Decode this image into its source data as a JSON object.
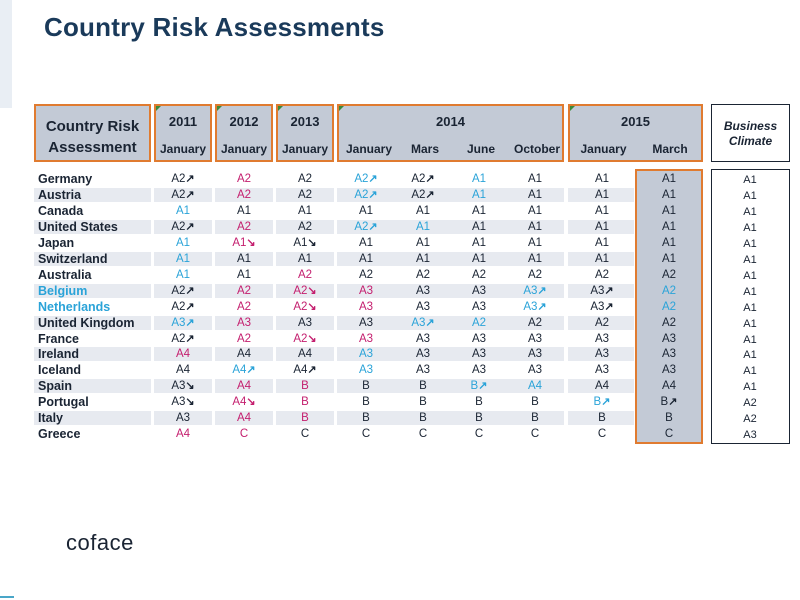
{
  "title": "Country Risk Assessments",
  "header": {
    "cra_label_line1": "Country Risk",
    "cra_label_line2": "Assessment",
    "years": [
      "2011",
      "2012",
      "2013",
      "2014",
      "2015"
    ],
    "months": [
      "January",
      "January",
      "January",
      "January",
      "Mars",
      "June",
      "October",
      "January",
      "March"
    ],
    "business_climate_line1": "Business",
    "business_climate_line2": "Climate"
  },
  "legend_colors": {
    "stable": "#1a2433",
    "upgrade": "#2aa3d8",
    "downgrade": "#c41e6e",
    "highlight_border": "#e07b30"
  },
  "rows": [
    {
      "country": "Germany",
      "cstatus": "n",
      "cells": [
        [
          "A2",
          "n",
          "ne"
        ],
        [
          "A2",
          "d",
          ""
        ],
        [
          "A2",
          "n",
          ""
        ],
        [
          "A2",
          "u",
          "ne"
        ],
        [
          "A2",
          "n",
          "ne"
        ],
        [
          "A1",
          "u",
          ""
        ],
        [
          "A1",
          "n",
          ""
        ],
        [
          "A1",
          "n",
          ""
        ],
        [
          "A1",
          "n",
          ""
        ]
      ],
      "bc": "A1"
    },
    {
      "country": "Austria",
      "cstatus": "n",
      "cells": [
        [
          "A2",
          "n",
          "ne"
        ],
        [
          "A2",
          "d",
          ""
        ],
        [
          "A2",
          "n",
          ""
        ],
        [
          "A2",
          "u",
          "ne"
        ],
        [
          "A2",
          "n",
          "ne"
        ],
        [
          "A1",
          "u",
          ""
        ],
        [
          "A1",
          "n",
          ""
        ],
        [
          "A1",
          "n",
          ""
        ],
        [
          "A1",
          "n",
          ""
        ]
      ],
      "bc": "A1"
    },
    {
      "country": "Canada",
      "cstatus": "n",
      "cells": [
        [
          "A1",
          "u",
          ""
        ],
        [
          "A1",
          "n",
          ""
        ],
        [
          "A1",
          "n",
          ""
        ],
        [
          "A1",
          "n",
          ""
        ],
        [
          "A1",
          "n",
          ""
        ],
        [
          "A1",
          "n",
          ""
        ],
        [
          "A1",
          "n",
          ""
        ],
        [
          "A1",
          "n",
          ""
        ],
        [
          "A1",
          "n",
          ""
        ]
      ],
      "bc": "A1"
    },
    {
      "country": "United States",
      "cstatus": "n",
      "cells": [
        [
          "A2",
          "n",
          "ne"
        ],
        [
          "A2",
          "d",
          ""
        ],
        [
          "A2",
          "n",
          ""
        ],
        [
          "A2",
          "u",
          "ne"
        ],
        [
          "A1",
          "u",
          ""
        ],
        [
          "A1",
          "n",
          ""
        ],
        [
          "A1",
          "n",
          ""
        ],
        [
          "A1",
          "n",
          ""
        ],
        [
          "A1",
          "n",
          ""
        ]
      ],
      "bc": "A1"
    },
    {
      "country": "Japan",
      "cstatus": "n",
      "cells": [
        [
          "A1",
          "u",
          ""
        ],
        [
          "A1",
          "d",
          "se"
        ],
        [
          "A1",
          "n",
          "se"
        ],
        [
          "A1",
          "n",
          ""
        ],
        [
          "A1",
          "n",
          ""
        ],
        [
          "A1",
          "n",
          ""
        ],
        [
          "A1",
          "n",
          ""
        ],
        [
          "A1",
          "n",
          ""
        ],
        [
          "A1",
          "n",
          ""
        ]
      ],
      "bc": "A1"
    },
    {
      "country": "Switzerland",
      "cstatus": "n",
      "cells": [
        [
          "A1",
          "u",
          ""
        ],
        [
          "A1",
          "n",
          ""
        ],
        [
          "A1",
          "n",
          ""
        ],
        [
          "A1",
          "n",
          ""
        ],
        [
          "A1",
          "n",
          ""
        ],
        [
          "A1",
          "n",
          ""
        ],
        [
          "A1",
          "n",
          ""
        ],
        [
          "A1",
          "n",
          ""
        ],
        [
          "A1",
          "n",
          ""
        ]
      ],
      "bc": "A1"
    },
    {
      "country": "Australia",
      "cstatus": "n",
      "cells": [
        [
          "A1",
          "u",
          ""
        ],
        [
          "A1",
          "n",
          ""
        ],
        [
          "A2",
          "d",
          ""
        ],
        [
          "A2",
          "n",
          ""
        ],
        [
          "A2",
          "n",
          ""
        ],
        [
          "A2",
          "n",
          ""
        ],
        [
          "A2",
          "n",
          ""
        ],
        [
          "A2",
          "n",
          ""
        ],
        [
          "A2",
          "n",
          ""
        ]
      ],
      "bc": "A1"
    },
    {
      "country": "Belgium",
      "cstatus": "u",
      "cells": [
        [
          "A2",
          "n",
          "ne"
        ],
        [
          "A2",
          "d",
          ""
        ],
        [
          "A2",
          "d",
          "se"
        ],
        [
          "A3",
          "d",
          ""
        ],
        [
          "A3",
          "n",
          ""
        ],
        [
          "A3",
          "n",
          ""
        ],
        [
          "A3",
          "u",
          "ne"
        ],
        [
          "A3",
          "n",
          "ne"
        ],
        [
          "A2",
          "u",
          ""
        ]
      ],
      "bc": "A1"
    },
    {
      "country": "Netherlands",
      "cstatus": "u",
      "cells": [
        [
          "A2",
          "n",
          "ne"
        ],
        [
          "A2",
          "d",
          ""
        ],
        [
          "A2",
          "d",
          "se"
        ],
        [
          "A3",
          "d",
          ""
        ],
        [
          "A3",
          "n",
          ""
        ],
        [
          "A3",
          "n",
          ""
        ],
        [
          "A3",
          "u",
          "ne"
        ],
        [
          "A3",
          "n",
          "ne"
        ],
        [
          "A2",
          "u",
          ""
        ]
      ],
      "bc": "A1"
    },
    {
      "country": "United Kingdom",
      "cstatus": "n",
      "cells": [
        [
          "A3",
          "u",
          "ne"
        ],
        [
          "A3",
          "d",
          ""
        ],
        [
          "A3",
          "n",
          ""
        ],
        [
          "A3",
          "n",
          ""
        ],
        [
          "A3",
          "u",
          "ne"
        ],
        [
          "A2",
          "u",
          ""
        ],
        [
          "A2",
          "n",
          ""
        ],
        [
          "A2",
          "n",
          ""
        ],
        [
          "A2",
          "n",
          ""
        ]
      ],
      "bc": "A1"
    },
    {
      "country": "France",
      "cstatus": "n",
      "cells": [
        [
          "A2",
          "n",
          "ne"
        ],
        [
          "A2",
          "d",
          ""
        ],
        [
          "A2",
          "d",
          "se"
        ],
        [
          "A3",
          "d",
          ""
        ],
        [
          "A3",
          "n",
          ""
        ],
        [
          "A3",
          "n",
          ""
        ],
        [
          "A3",
          "n",
          ""
        ],
        [
          "A3",
          "n",
          ""
        ],
        [
          "A3",
          "n",
          ""
        ]
      ],
      "bc": "A1"
    },
    {
      "country": "Ireland",
      "cstatus": "n",
      "cells": [
        [
          "A4",
          "d",
          ""
        ],
        [
          "A4",
          "n",
          ""
        ],
        [
          "A4",
          "n",
          ""
        ],
        [
          "A3",
          "u",
          ""
        ],
        [
          "A3",
          "n",
          ""
        ],
        [
          "A3",
          "n",
          ""
        ],
        [
          "A3",
          "n",
          ""
        ],
        [
          "A3",
          "n",
          ""
        ],
        [
          "A3",
          "n",
          ""
        ]
      ],
      "bc": "A1"
    },
    {
      "country": "Iceland",
      "cstatus": "n",
      "cells": [
        [
          "A4",
          "n",
          ""
        ],
        [
          "A4",
          "u",
          "ne"
        ],
        [
          "A4",
          "n",
          "ne"
        ],
        [
          "A3",
          "u",
          ""
        ],
        [
          "A3",
          "n",
          ""
        ],
        [
          "A3",
          "n",
          ""
        ],
        [
          "A3",
          "n",
          ""
        ],
        [
          "A3",
          "n",
          ""
        ],
        [
          "A3",
          "n",
          ""
        ]
      ],
      "bc": "A1"
    },
    {
      "country": "Spain",
      "cstatus": "n",
      "cells": [
        [
          "A3",
          "n",
          "se"
        ],
        [
          "A4",
          "d",
          ""
        ],
        [
          "B",
          "d",
          ""
        ],
        [
          "B",
          "n",
          ""
        ],
        [
          "B",
          "n",
          ""
        ],
        [
          "B",
          "u",
          "ne"
        ],
        [
          "A4",
          "u",
          ""
        ],
        [
          "A4",
          "n",
          ""
        ],
        [
          "A4",
          "n",
          ""
        ]
      ],
      "bc": "A1"
    },
    {
      "country": "Portugal",
      "cstatus": "n",
      "cells": [
        [
          "A3",
          "n",
          "se"
        ],
        [
          "A4",
          "d",
          "se"
        ],
        [
          "B",
          "d",
          ""
        ],
        [
          "B",
          "n",
          ""
        ],
        [
          "B",
          "n",
          ""
        ],
        [
          "B",
          "n",
          ""
        ],
        [
          "B",
          "n",
          ""
        ],
        [
          "B",
          "u",
          "ne"
        ],
        [
          "B",
          "n",
          "ne"
        ]
      ],
      "bc": "A2"
    },
    {
      "country": "Italy",
      "cstatus": "n",
      "cells": [
        [
          "A3",
          "n",
          ""
        ],
        [
          "A4",
          "d",
          ""
        ],
        [
          "B",
          "d",
          ""
        ],
        [
          "B",
          "n",
          ""
        ],
        [
          "B",
          "n",
          ""
        ],
        [
          "B",
          "n",
          ""
        ],
        [
          "B",
          "n",
          ""
        ],
        [
          "B",
          "n",
          ""
        ],
        [
          "B",
          "n",
          ""
        ]
      ],
      "bc": "A2"
    },
    {
      "country": "Greece",
      "cstatus": "n",
      "cells": [
        [
          "A4",
          "d",
          ""
        ],
        [
          "C",
          "d",
          ""
        ],
        [
          "C",
          "n",
          ""
        ],
        [
          "C",
          "n",
          ""
        ],
        [
          "C",
          "n",
          ""
        ],
        [
          "C",
          "n",
          ""
        ],
        [
          "C",
          "n",
          ""
        ],
        [
          "C",
          "n",
          ""
        ],
        [
          "C",
          "n",
          ""
        ]
      ],
      "bc": "A3"
    }
  ],
  "logo_text": "coface"
}
